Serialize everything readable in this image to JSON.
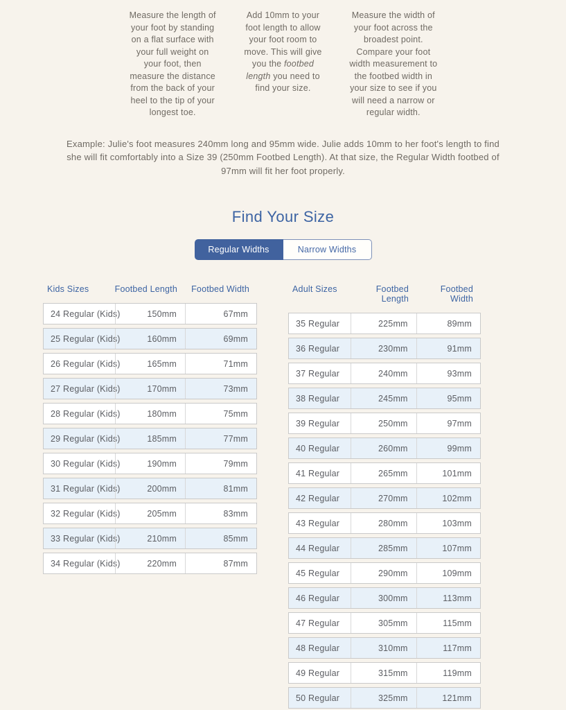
{
  "colors": {
    "background": "#f7f3ec",
    "accent_blue": "#41629e",
    "heading_blue": "#3d64a3",
    "row_alt_blue": "#e8f1f9",
    "body_text": "#6f6a63",
    "cell_text": "#5c5e63"
  },
  "steps": [
    {
      "text": "Measure the length of your foot by standing on a flat surface with your full weight on your foot, then measure the distance from the back of your heel to the tip of your longest toe."
    },
    {
      "pre": "Add 10mm to your foot length to allow your foot room to move. This will give you the ",
      "italic": "footbed length",
      "post": " you need to find your size."
    },
    {
      "text": "Measure the width of your foot across the broadest point. Compare your foot width measurement to the footbed width in your size to see if you will need a narrow or regular width."
    }
  ],
  "example": "Example: Julie's foot measures 240mm long and 95mm wide. Julie adds 10mm to her foot's length to find she will fit comfortably into a Size 39 (250mm Footbed Length). At that size, the Regular Width footbed of 97mm will fit her foot properly.",
  "heading": "Find Your Size",
  "tabs": [
    {
      "label": "Regular Widths",
      "active": true
    },
    {
      "label": "Narrow Widths",
      "active": false
    }
  ],
  "tables": {
    "kids": {
      "headers": [
        "Kids Sizes",
        "Footbed Length",
        "Footbed Width"
      ],
      "rows": [
        {
          "size": "24 Regular (Kids)",
          "length": "150mm",
          "width": "67mm"
        },
        {
          "size": "25 Regular (Kids)",
          "length": "160mm",
          "width": "69mm"
        },
        {
          "size": "26 Regular (Kids)",
          "length": "165mm",
          "width": "71mm"
        },
        {
          "size": "27 Regular (Kids)",
          "length": "170mm",
          "width": "73mm"
        },
        {
          "size": "28 Regular (Kids)",
          "length": "180mm",
          "width": "75mm"
        },
        {
          "size": "29 Regular (Kids)",
          "length": "185mm",
          "width": "77mm"
        },
        {
          "size": "30 Regular (Kids)",
          "length": "190mm",
          "width": "79mm"
        },
        {
          "size": "31 Regular (Kids)",
          "length": "200mm",
          "width": "81mm"
        },
        {
          "size": "32 Regular (Kids)",
          "length": "205mm",
          "width": "83mm"
        },
        {
          "size": "33 Regular (Kids)",
          "length": "210mm",
          "width": "85mm"
        },
        {
          "size": "34 Regular (Kids)",
          "length": "220mm",
          "width": "87mm"
        }
      ]
    },
    "adult": {
      "headers": [
        "Adult Sizes",
        "Footbed Length",
        "Footbed Width"
      ],
      "rows": [
        {
          "size": "35 Regular",
          "length": "225mm",
          "width": "89mm"
        },
        {
          "size": "36 Regular",
          "length": "230mm",
          "width": "91mm"
        },
        {
          "size": "37 Regular",
          "length": "240mm",
          "width": "93mm"
        },
        {
          "size": "38 Regular",
          "length": "245mm",
          "width": "95mm"
        },
        {
          "size": "39 Regular",
          "length": "250mm",
          "width": "97mm"
        },
        {
          "size": "40 Regular",
          "length": "260mm",
          "width": "99mm"
        },
        {
          "size": "41 Regular",
          "length": "265mm",
          "width": "101mm"
        },
        {
          "size": "42 Regular",
          "length": "270mm",
          "width": "102mm"
        },
        {
          "size": "43 Regular",
          "length": "280mm",
          "width": "103mm"
        },
        {
          "size": "44 Regular",
          "length": "285mm",
          "width": "107mm"
        },
        {
          "size": "45 Regular",
          "length": "290mm",
          "width": "109mm"
        },
        {
          "size": "46 Regular",
          "length": "300mm",
          "width": "113mm"
        },
        {
          "size": "47 Regular",
          "length": "305mm",
          "width": "115mm"
        },
        {
          "size": "48 Regular",
          "length": "310mm",
          "width": "117mm"
        },
        {
          "size": "49 Regular",
          "length": "315mm",
          "width": "119mm"
        },
        {
          "size": "50 Regular",
          "length": "325mm",
          "width": "121mm"
        }
      ]
    }
  }
}
